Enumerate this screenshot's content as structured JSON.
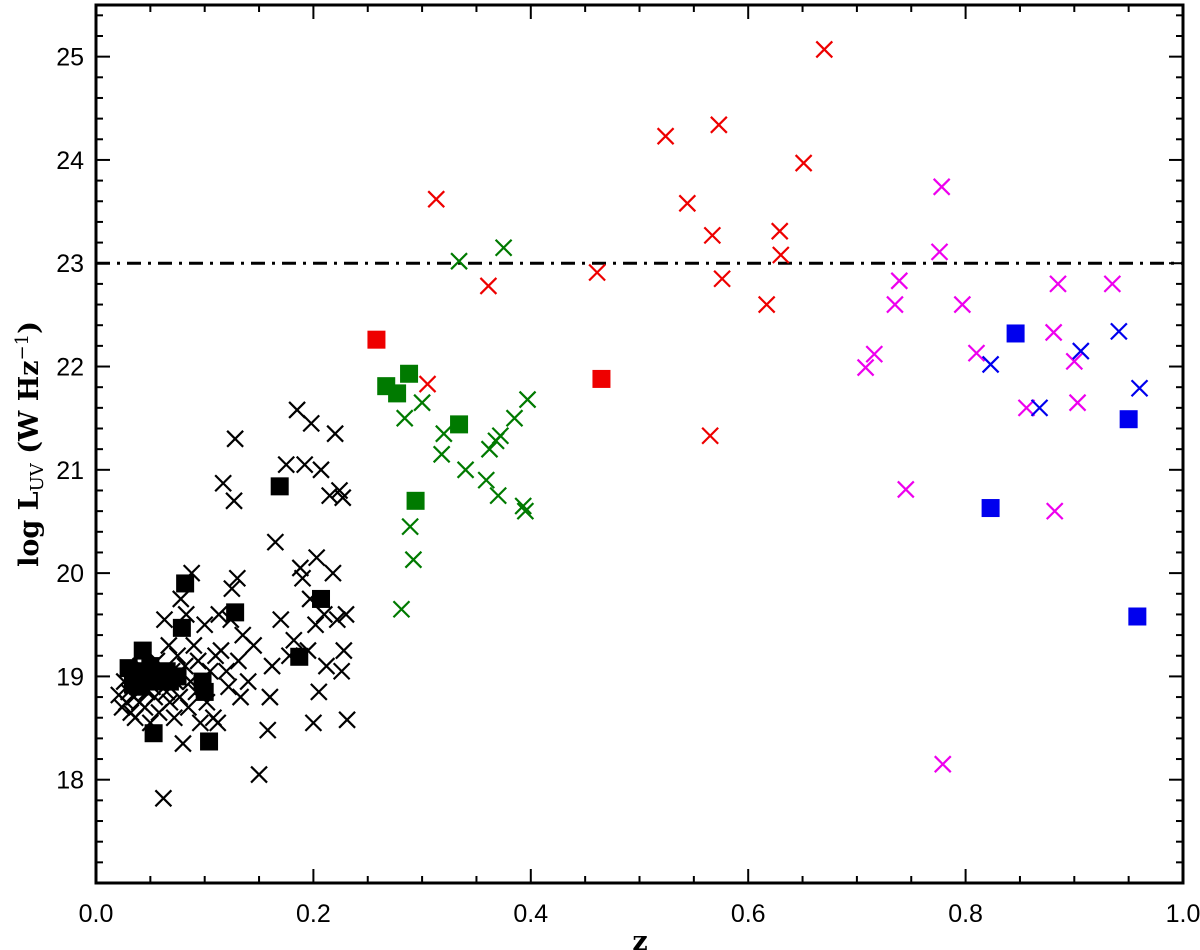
{
  "chart_data": {
    "type": "scatter",
    "title": "",
    "xlabel": "z",
    "ylabel": {
      "main": "log L",
      "sub": "UV",
      "unit_open": " (W Hz",
      "unit_exp": "−1",
      "unit_close": ")"
    },
    "xlim": [
      0.0,
      1.0
    ],
    "ylim": [
      17.0,
      25.5
    ],
    "xticks": [
      0.0,
      0.2,
      0.4,
      0.6,
      0.8,
      1.0
    ],
    "xtick_labels": [
      "0.0",
      "0.2",
      "0.4",
      "0.6",
      "0.8",
      "1.0"
    ],
    "yticks": [
      18,
      19,
      20,
      21,
      22,
      23,
      24,
      25
    ],
    "ytick_labels": [
      "18",
      "19",
      "20",
      "21",
      "22",
      "23",
      "24",
      "25"
    ],
    "reference_line": {
      "y": 23.0,
      "style": "dash-dot",
      "color": "#000000"
    },
    "series": [
      {
        "name": "black-cross",
        "marker": "x",
        "color": "#000000",
        "points": [
          [
            0.021,
            18.82
          ],
          [
            0.024,
            18.7
          ],
          [
            0.026,
            18.95
          ],
          [
            0.028,
            18.75
          ],
          [
            0.03,
            18.85
          ],
          [
            0.032,
            18.65
          ],
          [
            0.033,
            19.0
          ],
          [
            0.035,
            18.8
          ],
          [
            0.036,
            18.6
          ],
          [
            0.038,
            18.9
          ],
          [
            0.04,
            18.75
          ],
          [
            0.041,
            19.1
          ],
          [
            0.043,
            18.95
          ],
          [
            0.045,
            18.7
          ],
          [
            0.047,
            18.85
          ],
          [
            0.049,
            19.05
          ],
          [
            0.05,
            18.55
          ],
          [
            0.052,
            18.9
          ],
          [
            0.054,
            18.8
          ],
          [
            0.056,
            19.15
          ],
          [
            0.058,
            18.65
          ],
          [
            0.06,
            19.0
          ],
          [
            0.062,
            17.82
          ],
          [
            0.063,
            19.55
          ],
          [
            0.065,
            18.85
          ],
          [
            0.067,
            19.3
          ],
          [
            0.068,
            18.75
          ],
          [
            0.07,
            19.05
          ],
          [
            0.072,
            18.6
          ],
          [
            0.073,
            18.95
          ],
          [
            0.075,
            19.2
          ],
          [
            0.077,
            18.8
          ],
          [
            0.078,
            19.75
          ],
          [
            0.08,
            18.35
          ],
          [
            0.082,
            19.1
          ],
          [
            0.083,
            19.6
          ],
          [
            0.085,
            18.7
          ],
          [
            0.087,
            18.95
          ],
          [
            0.088,
            20.0
          ],
          [
            0.09,
            19.3
          ],
          [
            0.092,
            18.85
          ],
          [
            0.094,
            19.15
          ],
          [
            0.096,
            18.55
          ],
          [
            0.098,
            18.9
          ],
          [
            0.1,
            19.5
          ],
          [
            0.102,
            18.75
          ],
          [
            0.105,
            19.05
          ],
          [
            0.108,
            18.6
          ],
          [
            0.11,
            19.2
          ],
          [
            0.112,
            18.55
          ],
          [
            0.113,
            19.6
          ],
          [
            0.115,
            19.25
          ],
          [
            0.117,
            20.87
          ],
          [
            0.12,
            19.05
          ],
          [
            0.122,
            18.9
          ],
          [
            0.124,
            19.55
          ],
          [
            0.125,
            19.85
          ],
          [
            0.127,
            20.7
          ],
          [
            0.128,
            21.3
          ],
          [
            0.13,
            19.95
          ],
          [
            0.131,
            19.15
          ],
          [
            0.133,
            18.8
          ],
          [
            0.135,
            19.4
          ],
          [
            0.14,
            18.95
          ],
          [
            0.145,
            19.3
          ],
          [
            0.15,
            18.05
          ],
          [
            0.158,
            18.48
          ],
          [
            0.16,
            18.8
          ],
          [
            0.162,
            19.1
          ],
          [
            0.165,
            20.3
          ],
          [
            0.17,
            19.55
          ],
          [
            0.175,
            21.05
          ],
          [
            0.178,
            19.2
          ],
          [
            0.182,
            19.35
          ],
          [
            0.185,
            21.58
          ],
          [
            0.188,
            20.05
          ],
          [
            0.19,
            19.95
          ],
          [
            0.192,
            21.05
          ],
          [
            0.195,
            19.25
          ],
          [
            0.197,
            19.75
          ],
          [
            0.198,
            21.45
          ],
          [
            0.2,
            18.55
          ],
          [
            0.202,
            19.5
          ],
          [
            0.203,
            20.15
          ],
          [
            0.205,
            18.85
          ],
          [
            0.207,
            21.0
          ],
          [
            0.21,
            19.6
          ],
          [
            0.212,
            19.1
          ],
          [
            0.215,
            20.75
          ],
          [
            0.218,
            20.0
          ],
          [
            0.22,
            21.35
          ],
          [
            0.222,
            19.55
          ],
          [
            0.224,
            20.8
          ],
          [
            0.226,
            19.05
          ],
          [
            0.227,
            20.73
          ],
          [
            0.228,
            19.25
          ],
          [
            0.23,
            19.6
          ],
          [
            0.231,
            18.58
          ]
        ]
      },
      {
        "name": "black-square",
        "marker": "square",
        "color": "#000000",
        "points": [
          [
            0.03,
            19.08
          ],
          [
            0.034,
            18.92
          ],
          [
            0.037,
            19.0
          ],
          [
            0.04,
            18.9
          ],
          [
            0.043,
            19.25
          ],
          [
            0.046,
            19.05
          ],
          [
            0.05,
            19.1
          ],
          [
            0.053,
            18.45
          ],
          [
            0.055,
            18.95
          ],
          [
            0.06,
            19.0
          ],
          [
            0.065,
            19.05
          ],
          [
            0.068,
            18.95
          ],
          [
            0.075,
            19.0
          ],
          [
            0.079,
            19.47
          ],
          [
            0.082,
            19.9
          ],
          [
            0.098,
            18.95
          ],
          [
            0.1,
            18.85
          ],
          [
            0.104,
            18.37
          ],
          [
            0.128,
            19.62
          ],
          [
            0.169,
            20.84
          ],
          [
            0.187,
            19.19
          ],
          [
            0.207,
            19.75
          ]
        ]
      },
      {
        "name": "green-cross",
        "marker": "x",
        "color": "#007a00",
        "points": [
          [
            0.281,
            19.65
          ],
          [
            0.284,
            21.5
          ],
          [
            0.289,
            20.45
          ],
          [
            0.292,
            20.13
          ],
          [
            0.3,
            21.65
          ],
          [
            0.318,
            21.15
          ],
          [
            0.32,
            21.35
          ],
          [
            0.334,
            23.02
          ],
          [
            0.34,
            21.0
          ],
          [
            0.359,
            20.9
          ],
          [
            0.362,
            21.2
          ],
          [
            0.368,
            21.28
          ],
          [
            0.37,
            20.75
          ],
          [
            0.372,
            21.33
          ],
          [
            0.375,
            23.15
          ],
          [
            0.385,
            21.5
          ],
          [
            0.393,
            20.65
          ],
          [
            0.395,
            20.6
          ],
          [
            0.397,
            21.68
          ]
        ]
      },
      {
        "name": "green-square",
        "marker": "square",
        "color": "#007a00",
        "points": [
          [
            0.267,
            21.81
          ],
          [
            0.277,
            21.74
          ],
          [
            0.288,
            21.93
          ],
          [
            0.294,
            20.7
          ],
          [
            0.334,
            21.44
          ]
        ]
      },
      {
        "name": "red-cross",
        "marker": "x",
        "color": "#ee0000",
        "points": [
          [
            0.305,
            21.83
          ],
          [
            0.313,
            23.62
          ],
          [
            0.361,
            22.78
          ],
          [
            0.461,
            22.91
          ],
          [
            0.524,
            24.23
          ],
          [
            0.544,
            23.58
          ],
          [
            0.565,
            21.33
          ],
          [
            0.567,
            23.27
          ],
          [
            0.573,
            24.34
          ],
          [
            0.576,
            22.85
          ],
          [
            0.617,
            22.6
          ],
          [
            0.629,
            23.31
          ],
          [
            0.63,
            23.08
          ],
          [
            0.651,
            23.97
          ],
          [
            0.67,
            25.07
          ]
        ]
      },
      {
        "name": "red-square",
        "marker": "square",
        "color": "#ee0000",
        "points": [
          [
            0.258,
            22.26
          ],
          [
            0.465,
            21.88
          ]
        ]
      },
      {
        "name": "magenta-cross",
        "marker": "x",
        "color": "#ee00ee",
        "points": [
          [
            0.708,
            21.99
          ],
          [
            0.716,
            22.12
          ],
          [
            0.735,
            22.6
          ],
          [
            0.739,
            22.83
          ],
          [
            0.745,
            20.81
          ],
          [
            0.776,
            23.11
          ],
          [
            0.778,
            23.74
          ],
          [
            0.779,
            18.15
          ],
          [
            0.797,
            22.6
          ],
          [
            0.81,
            22.13
          ],
          [
            0.856,
            21.6
          ],
          [
            0.881,
            22.33
          ],
          [
            0.882,
            20.6
          ],
          [
            0.885,
            22.8
          ],
          [
            0.9,
            22.05
          ],
          [
            0.903,
            21.65
          ],
          [
            0.935,
            22.8
          ]
        ]
      },
      {
        "name": "blue-cross",
        "marker": "x",
        "color": "#0000ee",
        "points": [
          [
            0.823,
            22.02
          ],
          [
            0.868,
            21.6
          ],
          [
            0.906,
            22.15
          ],
          [
            0.941,
            22.34
          ],
          [
            0.96,
            21.79
          ]
        ]
      },
      {
        "name": "blue-square",
        "marker": "square",
        "color": "#0000ee",
        "points": [
          [
            0.823,
            20.63
          ],
          [
            0.846,
            22.32
          ],
          [
            0.95,
            21.49
          ],
          [
            0.958,
            19.58
          ]
        ]
      }
    ]
  }
}
